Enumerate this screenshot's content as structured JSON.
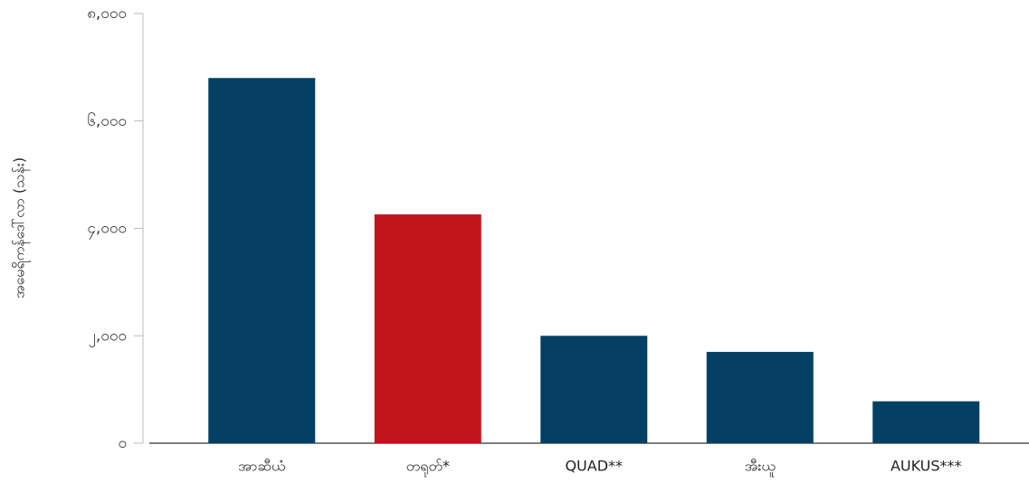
{
  "chart_data": {
    "type": "bar",
    "y_label": "အမေရိကန်ဒေါ်လာ (သန်း)",
    "categories": [
      "အာဆီယံ",
      "တရုတ်*",
      "QUAD**",
      "အီးယူ",
      "AUKUS***"
    ],
    "values": [
      6800,
      4260,
      2000,
      1700,
      780
    ],
    "colors": [
      "#034063",
      "#c0141b",
      "#034063",
      "#034063",
      "#034063"
    ],
    "ylim": [
      0,
      8000
    ],
    "yticks": [
      {
        "value": 0,
        "label": "၀"
      },
      {
        "value": 2000,
        "label": "၂,၀၀၀"
      },
      {
        "value": 4000,
        "label": "၄,၀၀၀"
      },
      {
        "value": 6000,
        "label": "၆,၀၀၀"
      },
      {
        "value": 8000,
        "label": "၈,၀၀၀"
      }
    ],
    "grid": false
  }
}
